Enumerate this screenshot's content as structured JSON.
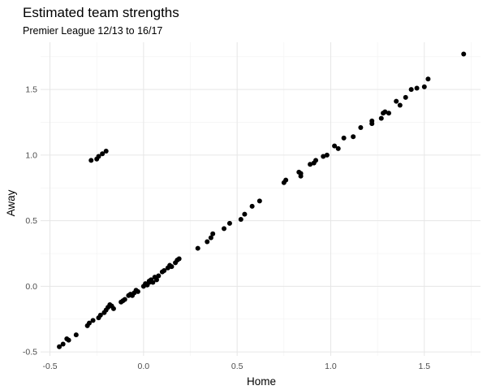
{
  "chart_data": {
    "type": "scatter",
    "title": "Estimated team strengths",
    "subtitle": "Premier League 12/13 to 16/17",
    "xlabel": "Home",
    "ylabel": "Away",
    "xlim": [
      -0.55,
      1.8
    ],
    "ylim": [
      -0.53,
      1.86
    ],
    "x_ticks": [
      -0.5,
      0.0,
      0.5,
      1.0,
      1.5
    ],
    "x_tick_labels": [
      "-0.5",
      "0.0",
      "0.5",
      "1.0",
      "1.5"
    ],
    "y_ticks": [
      -0.5,
      0.0,
      0.5,
      1.0,
      1.5
    ],
    "y_tick_labels": [
      "-0.5",
      "0.0",
      "0.5",
      "1.0",
      "1.5"
    ],
    "grid": true,
    "legend": "none",
    "point_color": "#000000",
    "points": [
      {
        "x": -0.45,
        "y": -0.46
      },
      {
        "x": -0.43,
        "y": -0.44
      },
      {
        "x": -0.41,
        "y": -0.4
      },
      {
        "x": -0.4,
        "y": -0.41
      },
      {
        "x": -0.36,
        "y": -0.37
      },
      {
        "x": -0.3,
        "y": -0.3
      },
      {
        "x": -0.29,
        "y": -0.28
      },
      {
        "x": -0.27,
        "y": -0.26
      },
      {
        "x": -0.24,
        "y": -0.24
      },
      {
        "x": -0.23,
        "y": -0.22
      },
      {
        "x": -0.21,
        "y": -0.2
      },
      {
        "x": -0.2,
        "y": -0.18
      },
      {
        "x": -0.19,
        "y": -0.16
      },
      {
        "x": -0.18,
        "y": -0.14
      },
      {
        "x": -0.17,
        "y": -0.15
      },
      {
        "x": -0.16,
        "y": -0.17
      },
      {
        "x": -0.12,
        "y": -0.12
      },
      {
        "x": -0.11,
        "y": -0.11
      },
      {
        "x": -0.1,
        "y": -0.1
      },
      {
        "x": -0.08,
        "y": -0.07
      },
      {
        "x": -0.07,
        "y": -0.06
      },
      {
        "x": -0.06,
        "y": -0.07
      },
      {
        "x": -0.05,
        "y": -0.05
      },
      {
        "x": -0.04,
        "y": -0.03
      },
      {
        "x": -0.03,
        "y": -0.04
      },
      {
        "x": 0.0,
        "y": 0.0
      },
      {
        "x": 0.01,
        "y": 0.02
      },
      {
        "x": 0.02,
        "y": 0.01
      },
      {
        "x": 0.03,
        "y": 0.03
      },
      {
        "x": 0.03,
        "y": 0.04
      },
      {
        "x": 0.04,
        "y": 0.05
      },
      {
        "x": 0.05,
        "y": 0.03
      },
      {
        "x": 0.06,
        "y": 0.07
      },
      {
        "x": 0.07,
        "y": 0.05
      },
      {
        "x": 0.08,
        "y": 0.08
      },
      {
        "x": 0.1,
        "y": 0.11
      },
      {
        "x": 0.11,
        "y": 0.12
      },
      {
        "x": 0.13,
        "y": 0.14
      },
      {
        "x": 0.14,
        "y": 0.16
      },
      {
        "x": 0.15,
        "y": 0.15
      },
      {
        "x": 0.17,
        "y": 0.18
      },
      {
        "x": 0.18,
        "y": 0.2
      },
      {
        "x": 0.19,
        "y": 0.21
      },
      {
        "x": 0.29,
        "y": 0.29
      },
      {
        "x": 0.34,
        "y": 0.34
      },
      {
        "x": 0.36,
        "y": 0.37
      },
      {
        "x": 0.37,
        "y": 0.4
      },
      {
        "x": 0.43,
        "y": 0.44
      },
      {
        "x": 0.46,
        "y": 0.48
      },
      {
        "x": 0.52,
        "y": 0.51
      },
      {
        "x": 0.54,
        "y": 0.55
      },
      {
        "x": 0.58,
        "y": 0.61
      },
      {
        "x": 0.62,
        "y": 0.65
      },
      {
        "x": 0.75,
        "y": 0.79
      },
      {
        "x": 0.76,
        "y": 0.81
      },
      {
        "x": 0.83,
        "y": 0.87
      },
      {
        "x": 0.84,
        "y": 0.84
      },
      {
        "x": 0.84,
        "y": 0.86
      },
      {
        "x": 0.89,
        "y": 0.93
      },
      {
        "x": 0.91,
        "y": 0.94
      },
      {
        "x": 0.92,
        "y": 0.96
      },
      {
        "x": 0.96,
        "y": 0.99
      },
      {
        "x": 0.98,
        "y": 1.0
      },
      {
        "x": 1.02,
        "y": 1.07
      },
      {
        "x": 1.04,
        "y": 1.05
      },
      {
        "x": 1.07,
        "y": 1.13
      },
      {
        "x": 1.12,
        "y": 1.14
      },
      {
        "x": 1.16,
        "y": 1.21
      },
      {
        "x": 1.22,
        "y": 1.24
      },
      {
        "x": 1.22,
        "y": 1.26
      },
      {
        "x": 1.27,
        "y": 1.28
      },
      {
        "x": 1.28,
        "y": 1.32
      },
      {
        "x": 1.29,
        "y": 1.33
      },
      {
        "x": 1.31,
        "y": 1.32
      },
      {
        "x": 1.35,
        "y": 1.41
      },
      {
        "x": 1.37,
        "y": 1.38
      },
      {
        "x": 1.4,
        "y": 1.44
      },
      {
        "x": 1.43,
        "y": 1.5
      },
      {
        "x": 1.46,
        "y": 1.51
      },
      {
        "x": 1.5,
        "y": 1.52
      },
      {
        "x": 1.52,
        "y": 1.58
      },
      {
        "x": 1.71,
        "y": 1.77
      },
      {
        "x": -0.28,
        "y": 0.96
      },
      {
        "x": -0.25,
        "y": 0.97
      },
      {
        "x": -0.24,
        "y": 0.99
      },
      {
        "x": -0.22,
        "y": 1.01
      },
      {
        "x": -0.2,
        "y": 1.03
      }
    ]
  }
}
